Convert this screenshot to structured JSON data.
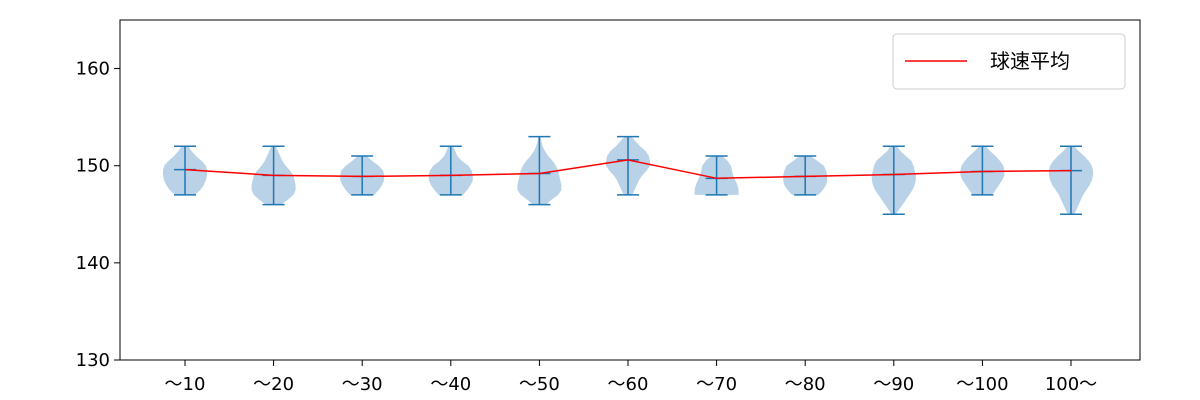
{
  "chart_data": {
    "type": "violin",
    "categories": [
      "～10",
      "～20",
      "～30",
      "～40",
      "～50",
      "～60",
      "～70",
      "～80",
      "～90",
      "～100",
      "100～"
    ],
    "ylim": [
      130,
      165
    ],
    "yticks": [
      130,
      140,
      150,
      160
    ],
    "series": [
      {
        "name": "球速平均",
        "type": "line",
        "color": "#ff0000",
        "values": [
          149.6,
          149.0,
          148.9,
          149.0,
          149.2,
          150.6,
          148.7,
          148.9,
          149.1,
          149.4,
          149.5
        ]
      }
    ],
    "distributions": [
      {
        "min": 147,
        "max": 152,
        "mean": 149.6,
        "profile": [
          [
            147,
            0.45
          ],
          [
            147.5,
            0.7
          ],
          [
            148,
            0.85
          ],
          [
            148.5,
            0.95
          ],
          [
            149,
            1.0
          ],
          [
            149.5,
            1.0
          ],
          [
            150,
            0.95
          ],
          [
            150.5,
            0.75
          ],
          [
            151,
            0.5
          ],
          [
            151.5,
            0.3
          ],
          [
            152,
            0.15
          ]
        ]
      },
      {
        "min": 146,
        "max": 152,
        "mean": 149.0,
        "profile": [
          [
            146,
            0.35
          ],
          [
            146.5,
            0.65
          ],
          [
            147,
            0.9
          ],
          [
            147.5,
            1.0
          ],
          [
            148,
            1.0
          ],
          [
            148.5,
            0.95
          ],
          [
            149,
            0.9
          ],
          [
            149.5,
            0.75
          ],
          [
            150,
            0.55
          ],
          [
            150.5,
            0.4
          ],
          [
            151,
            0.3
          ],
          [
            151.5,
            0.2
          ],
          [
            152,
            0.1
          ]
        ]
      },
      {
        "min": 147,
        "max": 151,
        "mean": 148.9,
        "profile": [
          [
            147,
            0.55
          ],
          [
            147.5,
            0.75
          ],
          [
            148,
            0.9
          ],
          [
            148.5,
            1.0
          ],
          [
            149,
            1.0
          ],
          [
            149.5,
            0.95
          ],
          [
            150,
            0.75
          ],
          [
            150.5,
            0.45
          ],
          [
            151,
            0.2
          ]
        ]
      },
      {
        "min": 147,
        "max": 152,
        "mean": 149.0,
        "profile": [
          [
            147,
            0.55
          ],
          [
            147.5,
            0.75
          ],
          [
            148,
            0.9
          ],
          [
            148.5,
            1.0
          ],
          [
            149,
            1.0
          ],
          [
            149.5,
            0.95
          ],
          [
            150,
            0.8
          ],
          [
            150.5,
            0.5
          ],
          [
            151,
            0.3
          ],
          [
            151.5,
            0.2
          ],
          [
            152,
            0.1
          ]
        ]
      },
      {
        "min": 146,
        "max": 153,
        "mean": 149.2,
        "profile": [
          [
            146,
            0.3
          ],
          [
            146.5,
            0.55
          ],
          [
            147,
            0.85
          ],
          [
            147.5,
            1.0
          ],
          [
            148,
            1.0
          ],
          [
            148.5,
            0.95
          ],
          [
            149,
            0.9
          ],
          [
            149.5,
            0.85
          ],
          [
            150,
            0.75
          ],
          [
            150.5,
            0.6
          ],
          [
            151,
            0.4
          ],
          [
            151.5,
            0.25
          ],
          [
            152,
            0.15
          ],
          [
            152.5,
            0.08
          ],
          [
            153,
            0.05
          ]
        ]
      },
      {
        "min": 147,
        "max": 153,
        "mean": 150.6,
        "profile": [
          [
            147,
            0.2
          ],
          [
            147.5,
            0.3
          ],
          [
            148,
            0.4
          ],
          [
            148.5,
            0.5
          ],
          [
            149,
            0.65
          ],
          [
            149.5,
            0.85
          ],
          [
            150,
            1.0
          ],
          [
            150.5,
            1.0
          ],
          [
            151,
            0.95
          ],
          [
            151.5,
            0.8
          ],
          [
            152,
            0.55
          ],
          [
            152.5,
            0.35
          ],
          [
            153,
            0.15
          ]
        ]
      },
      {
        "min": 147,
        "max": 151,
        "mean": 148.7,
        "profile": [
          [
            147,
            1.0
          ],
          [
            147.5,
            1.0
          ],
          [
            148,
            0.95
          ],
          [
            148.5,
            0.85
          ],
          [
            149,
            0.75
          ],
          [
            149.5,
            0.7
          ],
          [
            150,
            0.65
          ],
          [
            150.5,
            0.5
          ],
          [
            151,
            0.25
          ]
        ]
      },
      {
        "min": 147,
        "max": 151,
        "mean": 148.9,
        "profile": [
          [
            147,
            0.6
          ],
          [
            147.5,
            0.8
          ],
          [
            148,
            0.95
          ],
          [
            148.5,
            1.0
          ],
          [
            149,
            1.0
          ],
          [
            149.5,
            0.95
          ],
          [
            150,
            0.85
          ],
          [
            150.5,
            0.55
          ],
          [
            151,
            0.25
          ]
        ]
      },
      {
        "min": 145,
        "max": 152,
        "mean": 149.1,
        "profile": [
          [
            145,
            0.1
          ],
          [
            145.5,
            0.25
          ],
          [
            146,
            0.4
          ],
          [
            146.5,
            0.55
          ],
          [
            147,
            0.7
          ],
          [
            147.5,
            0.85
          ],
          [
            148,
            0.95
          ],
          [
            148.5,
            1.0
          ],
          [
            149,
            1.0
          ],
          [
            149.5,
            0.95
          ],
          [
            150,
            0.9
          ],
          [
            150.5,
            0.8
          ],
          [
            151,
            0.55
          ],
          [
            151.5,
            0.3
          ],
          [
            152,
            0.15
          ]
        ]
      },
      {
        "min": 147,
        "max": 152,
        "mean": 149.4,
        "profile": [
          [
            147,
            0.45
          ],
          [
            147.5,
            0.6
          ],
          [
            148,
            0.75
          ],
          [
            148.5,
            0.9
          ],
          [
            149,
            1.0
          ],
          [
            149.5,
            1.0
          ],
          [
            150,
            0.95
          ],
          [
            150.5,
            0.8
          ],
          [
            151,
            0.6
          ],
          [
            151.5,
            0.35
          ],
          [
            152,
            0.15
          ]
        ]
      },
      {
        "min": 145,
        "max": 152,
        "mean": 149.5,
        "profile": [
          [
            145,
            0.15
          ],
          [
            145.5,
            0.25
          ],
          [
            146,
            0.35
          ],
          [
            146.5,
            0.45
          ],
          [
            147,
            0.55
          ],
          [
            147.5,
            0.7
          ],
          [
            148,
            0.85
          ],
          [
            148.5,
            0.95
          ],
          [
            149,
            1.0
          ],
          [
            149.5,
            1.0
          ],
          [
            150,
            0.95
          ],
          [
            150.5,
            0.8
          ],
          [
            151,
            0.6
          ],
          [
            151.5,
            0.35
          ],
          [
            152,
            0.15
          ]
        ]
      }
    ],
    "colors": {
      "violin_fill": "#b5d0e6",
      "violin_line": "#1f77b4",
      "mean_line": "#ff0000",
      "axis": "#000000"
    },
    "legend": {
      "placement": "top-right",
      "entries": [
        "球速平均"
      ]
    },
    "grid": false
  }
}
